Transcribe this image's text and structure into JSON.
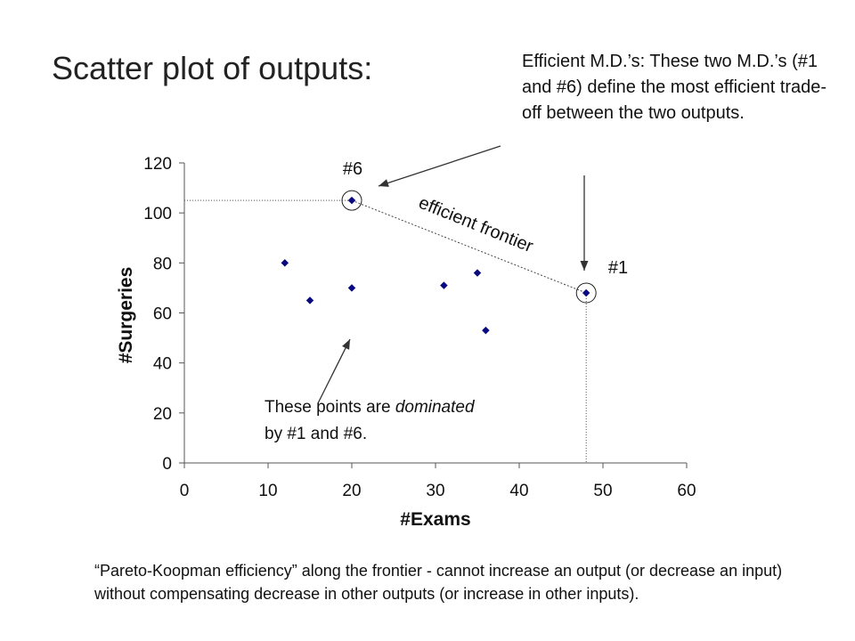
{
  "title": "Scatter plot of outputs:",
  "callout_efficient": "Efficient M.D.’s: These two M.D.’s (#1 and #6) define the most efficient trade-off between the two outputs.",
  "callout_dominated": {
    "line1_before": "These points are ",
    "line1_em": "dominated",
    "line2": "by #1 and #6."
  },
  "frontier_label": "efficient frontier",
  "point_labels": {
    "p6": "#6",
    "p1": "#1"
  },
  "footnote": "“Pareto-Koopman efficiency” along the frontier - cannot increase an output (or decrease an input) without compensating decrease in other outputs (or increase in other inputs).",
  "colors": {
    "marker": "#0a0a80",
    "axis": "#555555",
    "arrow": "#333333"
  },
  "chart_data": {
    "type": "scatter",
    "xlabel": "#Exams",
    "ylabel": "#Surgeries",
    "xlim": [
      0,
      60
    ],
    "ylim": [
      0,
      120
    ],
    "xticks": [
      0,
      10,
      20,
      30,
      40,
      50,
      60
    ],
    "yticks": [
      0,
      20,
      40,
      60,
      80,
      100,
      120
    ],
    "grid": false,
    "points": [
      {
        "x": 12,
        "y": 80
      },
      {
        "x": 15,
        "y": 65
      },
      {
        "x": 20,
        "y": 70
      },
      {
        "x": 20,
        "y": 105,
        "label": "#6"
      },
      {
        "x": 31,
        "y": 71
      },
      {
        "x": 35,
        "y": 76
      },
      {
        "x": 36,
        "y": 53
      },
      {
        "x": 48,
        "y": 68,
        "label": "#1"
      }
    ]
  }
}
